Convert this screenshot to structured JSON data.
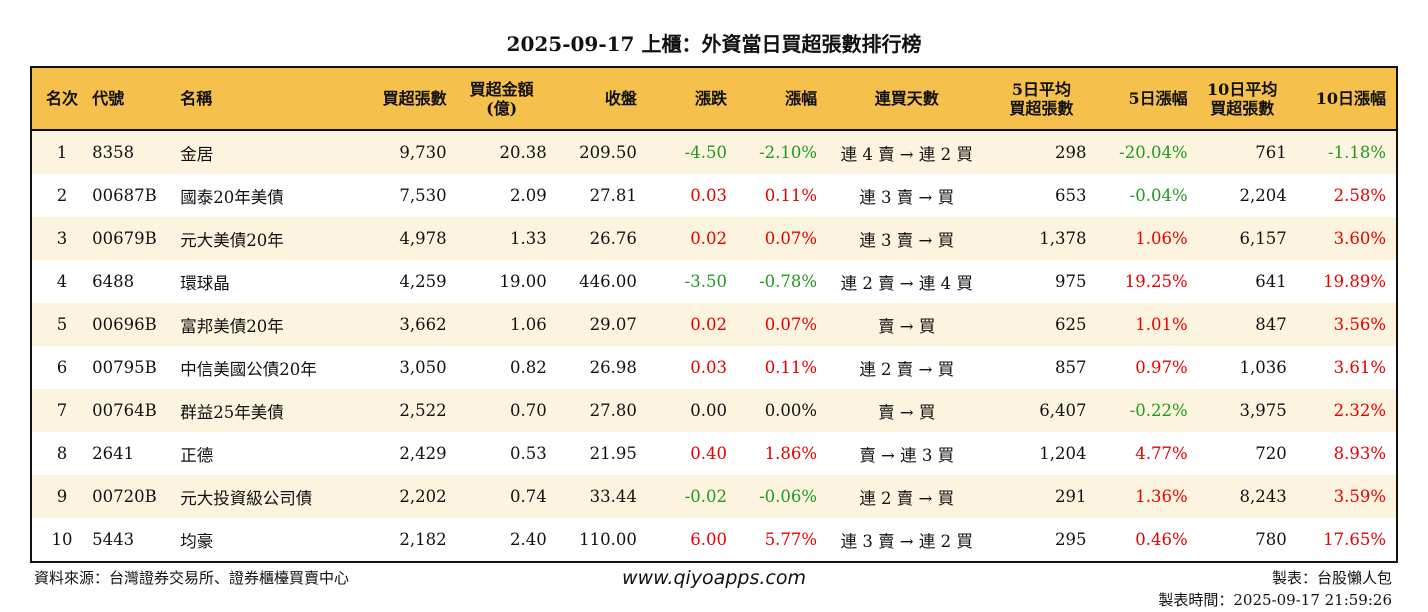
{
  "title": "2025-09-17 上櫃：外資當日買超張數排行榜",
  "colors": {
    "header_bg": "#f6c04c",
    "row_alt": "#fdf4df",
    "up": "#e60000",
    "down": "#1f9a1f"
  },
  "headers": [
    "名次",
    "代號",
    "名稱",
    "買超張數",
    "買超金額\n(億)",
    "收盤",
    "漲跌",
    "漲幅",
    "連買天數",
    "5日平均\n買超張數",
    "5日漲幅",
    "10日平均\n買超張數",
    "10日漲幅"
  ],
  "rows": [
    [
      "1",
      "8358",
      "金居",
      "9,730",
      "20.38",
      "209.50",
      "-4.50",
      "-2.10%",
      "連 4 賣 → 連 2 買",
      "298",
      "-20.04%",
      "761",
      "-1.18%"
    ],
    [
      "2",
      "00687B",
      "國泰20年美債",
      "7,530",
      "2.09",
      "27.81",
      "0.03",
      "0.11%",
      "連 3 賣 → 買",
      "653",
      "-0.04%",
      "2,204",
      "2.58%"
    ],
    [
      "3",
      "00679B",
      "元大美債20年",
      "4,978",
      "1.33",
      "26.76",
      "0.02",
      "0.07%",
      "連 3 賣 → 買",
      "1,378",
      "1.06%",
      "6,157",
      "3.60%"
    ],
    [
      "4",
      "6488",
      "環球晶",
      "4,259",
      "19.00",
      "446.00",
      "-3.50",
      "-0.78%",
      "連 2 賣 → 連 4 買",
      "975",
      "19.25%",
      "641",
      "19.89%"
    ],
    [
      "5",
      "00696B",
      "富邦美債20年",
      "3,662",
      "1.06",
      "29.07",
      "0.02",
      "0.07%",
      "賣 → 買",
      "625",
      "1.01%",
      "847",
      "3.56%"
    ],
    [
      "6",
      "00795B",
      "中信美國公債20年",
      "3,050",
      "0.82",
      "26.98",
      "0.03",
      "0.11%",
      "連 2 賣 → 買",
      "857",
      "0.97%",
      "1,036",
      "3.61%"
    ],
    [
      "7",
      "00764B",
      "群益25年美債",
      "2,522",
      "0.70",
      "27.80",
      "0.00",
      "0.00%",
      "賣 → 買",
      "6,407",
      "-0.22%",
      "3,975",
      "2.32%"
    ],
    [
      "8",
      "2641",
      "正德",
      "2,429",
      "0.53",
      "21.95",
      "0.40",
      "1.86%",
      "賣 → 連 3 買",
      "1,204",
      "4.77%",
      "720",
      "8.93%"
    ],
    [
      "9",
      "00720B",
      "元大投資級公司債",
      "2,202",
      "0.74",
      "33.44",
      "-0.02",
      "-0.06%",
      "連 2 賣 → 買",
      "291",
      "1.36%",
      "8,243",
      "3.59%"
    ],
    [
      "10",
      "5443",
      "均豪",
      "2,182",
      "2.40",
      "110.00",
      "6.00",
      "5.77%",
      "連 3 賣 → 連 2 買",
      "295",
      "0.46%",
      "780",
      "17.65%"
    ]
  ],
  "footer": {
    "source": "資料來源：台灣證券交易所、證券櫃檯買賣中心",
    "site": "www.qiyoapps.com",
    "maker": "製表：台股懶人包",
    "time": "製表時間：2025-09-17 21:59:26"
  }
}
